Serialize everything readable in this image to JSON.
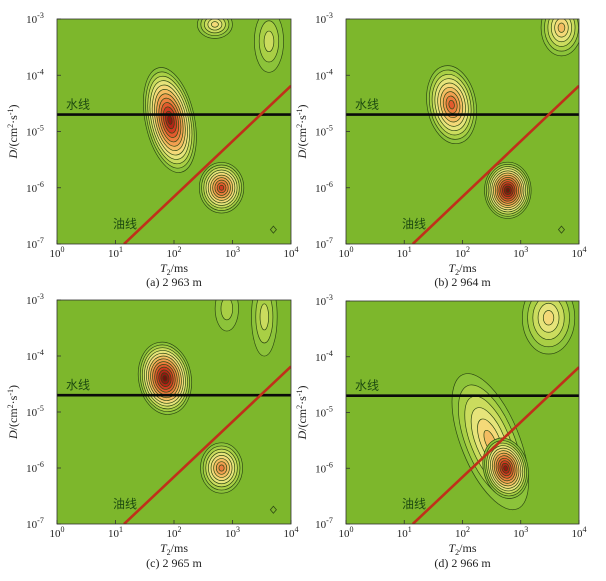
{
  "colors": {
    "background": "#7db72c",
    "levels": [
      "#8cc33a",
      "#a9cf45",
      "#cbdc5e",
      "#e6e47a",
      "#f4d978",
      "#f4bd62",
      "#f29f50",
      "#ec7e3e",
      "#e25a2e",
      "#d03a22",
      "#b52318",
      "#951511",
      "#74100d"
    ],
    "contour_stroke": "#2f4a14",
    "water_line": "#0a0a0a",
    "oil_line": "#c0301a"
  },
  "chart_data": [
    {
      "type": "heatmap",
      "subtype": "contour",
      "caption": "(a) 2 963 m",
      "xlabel": "T2/ms",
      "ylabel": "D/(cm2·s-1)",
      "x_scale": "log",
      "y_scale": "log",
      "xlim": [
        1,
        10000
      ],
      "ylim": [
        1e-07,
        0.001
      ],
      "x_ticks": [
        "10^0",
        "10^1",
        "10^2",
        "10^3",
        "10^4"
      ],
      "y_ticks": [
        "10^-3",
        "10^-4",
        "10^-5",
        "10^-6",
        "10^-7"
      ],
      "water_line": {
        "label": "水线",
        "D": 2e-05
      },
      "oil_line": {
        "label": "油线",
        "points": [
          [
            14,
            1e-07
          ],
          [
            10000,
            6.5e-05
          ]
        ]
      },
      "peaks": [
        {
          "T2": 85,
          "D": 1.6e-05,
          "spread_decades": [
            0.42,
            0.95
          ],
          "tilt": -12,
          "levels": 12
        },
        {
          "T2": 650,
          "D": 1e-06,
          "spread_decades": [
            0.38,
            0.45
          ],
          "tilt": 0,
          "levels": 10
        },
        {
          "T2": 500,
          "D": 0.0008,
          "spread_decades": [
            0.3,
            0.25
          ],
          "tilt": 0,
          "levels": 5
        },
        {
          "T2": 4200,
          "D": 0.0004,
          "spread_decades": [
            0.25,
            0.55
          ],
          "tilt": 0,
          "levels": 3
        }
      ],
      "marker": {
        "symbol": "diamond",
        "T2": 5000,
        "D": 1.8e-07
      }
    },
    {
      "type": "heatmap",
      "subtype": "contour",
      "caption": "(b) 2 964 m",
      "xlabel": "T2/ms",
      "ylabel": "D/(cm2·s-1)",
      "x_scale": "log",
      "y_scale": "log",
      "xlim": [
        1,
        10000
      ],
      "ylim": [
        1e-07,
        0.001
      ],
      "x_ticks": [
        "10^0",
        "10^1",
        "10^2",
        "10^3",
        "10^4"
      ],
      "y_ticks": [
        "10^-3",
        "10^-4",
        "10^-5",
        "10^-6",
        "10^-7"
      ],
      "water_line": {
        "label": "水线",
        "D": 2e-05
      },
      "oil_line": {
        "label": "油线",
        "points": [
          [
            14,
            1e-07
          ],
          [
            10000,
            6.5e-05
          ]
        ]
      },
      "peaks": [
        {
          "T2": 65,
          "D": 3e-05,
          "spread_decades": [
            0.42,
            0.7
          ],
          "tilt": -10,
          "levels": 9
        },
        {
          "T2": 600,
          "D": 9e-07,
          "spread_decades": [
            0.4,
            0.5
          ],
          "tilt": 0,
          "levels": 13
        },
        {
          "T2": 5000,
          "D": 0.0007,
          "spread_decades": [
            0.35,
            0.5
          ],
          "tilt": 0,
          "levels": 6
        }
      ],
      "marker": {
        "symbol": "diamond",
        "T2": 5000,
        "D": 1.8e-07
      }
    },
    {
      "type": "heatmap",
      "subtype": "contour",
      "caption": "(c) 2 965 m",
      "xlabel": "T2/ms",
      "ylabel": "D/(cm2·s-1)",
      "x_scale": "log",
      "y_scale": "log",
      "xlim": [
        1,
        10000
      ],
      "ylim": [
        1e-07,
        0.001
      ],
      "x_ticks": [
        "10^0",
        "10^1",
        "10^2",
        "10^3",
        "10^4"
      ],
      "y_ticks": [
        "10^-3",
        "10^-4",
        "10^-5",
        "10^-6",
        "10^-7"
      ],
      "water_line": {
        "label": "水线",
        "D": 2e-05
      },
      "oil_line": {
        "label": "油线",
        "points": [
          [
            14,
            1e-07
          ],
          [
            10000,
            6.5e-05
          ]
        ]
      },
      "peaks": [
        {
          "T2": 70,
          "D": 4e-05,
          "spread_decades": [
            0.45,
            0.65
          ],
          "tilt": -10,
          "levels": 13
        },
        {
          "T2": 650,
          "D": 1e-06,
          "spread_decades": [
            0.36,
            0.45
          ],
          "tilt": 0,
          "levels": 8
        },
        {
          "T2": 3500,
          "D": 0.0005,
          "spread_decades": [
            0.22,
            0.7
          ],
          "tilt": 0,
          "levels": 3
        },
        {
          "T2": 800,
          "D": 0.0007,
          "spread_decades": [
            0.2,
            0.4
          ],
          "tilt": 0,
          "levels": 2
        }
      ],
      "marker": {
        "symbol": "diamond",
        "T2": 5000,
        "D": 1.8e-07
      }
    },
    {
      "type": "heatmap",
      "subtype": "contour",
      "caption": "(d) 2 966 m",
      "xlabel": "T2/ms",
      "ylabel": "D/(cm2·s-1)",
      "x_scale": "log",
      "y_scale": "log",
      "xlim": [
        1,
        10000
      ],
      "ylim": [
        1e-07,
        0.001
      ],
      "x_ticks": [
        "10^0",
        "10^1",
        "10^2",
        "10^3",
        "10^4"
      ],
      "y_ticks": [
        "10^-3",
        "10^-4",
        "10^-5",
        "10^-6",
        "10^-7"
      ],
      "water_line": {
        "label": "水线",
        "D": 2e-05
      },
      "oil_line": {
        "label": "油线",
        "points": [
          [
            14,
            1e-07
          ],
          [
            10000,
            6.5e-05
          ]
        ]
      },
      "peaks": [
        {
          "T2": 300,
          "D": 3e-06,
          "spread_decades": [
            0.5,
            1.3
          ],
          "tilt": -22,
          "levels": 6
        },
        {
          "T2": 550,
          "D": 1e-06,
          "spread_decades": [
            0.38,
            0.55
          ],
          "tilt": -15,
          "levels": 12
        },
        {
          "T2": 3000,
          "D": 0.0005,
          "spread_decades": [
            0.45,
            0.65
          ],
          "tilt": 0,
          "levels": 5
        }
      ],
      "marker": null
    }
  ]
}
